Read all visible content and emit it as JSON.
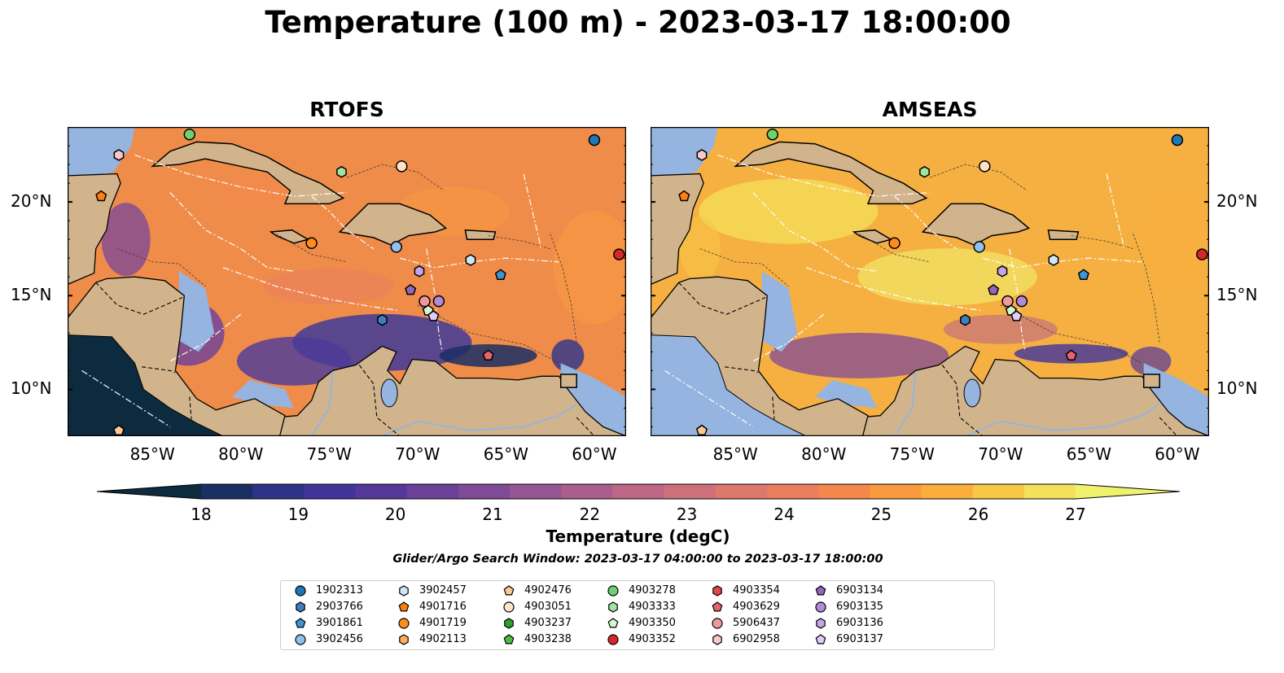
{
  "title": "Temperature (100 m) - 2023-03-17 18:00:00",
  "panels": [
    {
      "name": "rtofs",
      "title": "RTOFS"
    },
    {
      "name": "amseas",
      "title": "AMSEAS"
    }
  ],
  "axes": {
    "x_ticks": [
      "85°W",
      "80°W",
      "75°W",
      "70°W",
      "65°W",
      "60°W"
    ],
    "y_ticks": [
      "20°N",
      "15°N",
      "10°N"
    ]
  },
  "colorbar": {
    "label": "Temperature (degC)",
    "ticks": [
      "18",
      "19",
      "20",
      "21",
      "22",
      "23",
      "24",
      "25",
      "26",
      "27"
    ],
    "range": [
      18,
      27
    ],
    "colors": [
      "#0d2b3e",
      "#1a2f63",
      "#2c3389",
      "#40349a",
      "#55389a",
      "#6b4099",
      "#7f4a96",
      "#955592",
      "#a95e8d",
      "#bc6785",
      "#ce7079",
      "#dd786c",
      "#ea7e5e",
      "#f4884b",
      "#f99a3f",
      "#fbae3c",
      "#f8c744",
      "#f4e05a",
      "#f0f26e"
    ]
  },
  "search_window": "Glider/Argo Search Window: 2023-03-17 04:00:00 to 2023-03-17 18:00:00",
  "legend": [
    {
      "id": "1902313",
      "marker": "circle",
      "color": "#1f77b4"
    },
    {
      "id": "2903766",
      "marker": "hexagon",
      "color": "#3f7fbf"
    },
    {
      "id": "3901861",
      "marker": "pentagon",
      "color": "#3f95cf"
    },
    {
      "id": "3902456",
      "marker": "circle",
      "color": "#8fc1ec"
    },
    {
      "id": "3902457",
      "marker": "hexagon",
      "color": "#cfe6f7"
    },
    {
      "id": "4901716",
      "marker": "pentagon",
      "color": "#ff7f0e"
    },
    {
      "id": "4901719",
      "marker": "circle",
      "color": "#ff8c1a"
    },
    {
      "id": "4902113",
      "marker": "hexagon",
      "color": "#ffad5c"
    },
    {
      "id": "4902476",
      "marker": "pentagon",
      "color": "#ffc894"
    },
    {
      "id": "4903051",
      "marker": "circle",
      "color": "#ffe3c8"
    },
    {
      "id": "4903237",
      "marker": "hexagon",
      "color": "#2ca02c"
    },
    {
      "id": "4903238",
      "marker": "pentagon",
      "color": "#4cbf3c"
    },
    {
      "id": "4903278",
      "marker": "circle",
      "color": "#6fd06f"
    },
    {
      "id": "4903333",
      "marker": "hexagon",
      "color": "#a0e4a0"
    },
    {
      "id": "4903350",
      "marker": "pentagon",
      "color": "#d2f5d2"
    },
    {
      "id": "4903352",
      "marker": "circle",
      "color": "#d62728"
    },
    {
      "id": "4903354",
      "marker": "hexagon",
      "color": "#e0474a"
    },
    {
      "id": "4903629",
      "marker": "pentagon",
      "color": "#e8646a"
    },
    {
      "id": "5906437",
      "marker": "circle",
      "color": "#f0999b"
    },
    {
      "id": "6902958",
      "marker": "hexagon",
      "color": "#f8c8ca"
    },
    {
      "id": "6903134",
      "marker": "pentagon",
      "color": "#9467bd"
    },
    {
      "id": "6903135",
      "marker": "circle",
      "color": "#b08ad6"
    },
    {
      "id": "6903136",
      "marker": "hexagon",
      "color": "#c5a5ea"
    },
    {
      "id": "6903137",
      "marker": "pentagon",
      "color": "#e2cdf7"
    }
  ],
  "chart_data": {
    "type": "heatmap",
    "title": "Temperature (100 m) - 2023-03-17 18:00:00",
    "xlim": [
      -89.8,
      -58.2
    ],
    "ylim": [
      7.5,
      24.0
    ],
    "units": "degC",
    "colorbar_range": [
      18,
      27
    ],
    "legend_placement": "bottom-center",
    "subplots": [
      "RTOFS",
      "AMSEAS"
    ],
    "markers": [
      {
        "id": "1902313",
        "lon": -60.0,
        "lat": 23.3
      },
      {
        "id": "2903766",
        "lon": -72.0,
        "lat": 13.7
      },
      {
        "id": "3901861",
        "lon": -65.3,
        "lat": 16.1
      },
      {
        "id": "3902456",
        "lon": -71.2,
        "lat": 17.6
      },
      {
        "id": "3902457",
        "lon": -67.0,
        "lat": 16.9
      },
      {
        "id": "4901716",
        "lon": -87.9,
        "lat": 20.3
      },
      {
        "id": "4901719",
        "lon": -76.0,
        "lat": 17.8
      },
      {
        "id": "4902113",
        "lon": -70.9,
        "lat": 21.9
      },
      {
        "id": "4902476",
        "lon": -86.9,
        "lat": 7.8
      },
      {
        "id": "4903051",
        "lon": -70.9,
        "lat": 21.9
      },
      {
        "id": "4903278",
        "lon": -82.9,
        "lat": 23.6
      },
      {
        "id": "4903333",
        "lon": -74.3,
        "lat": 21.6
      },
      {
        "id": "4903350",
        "lon": -69.4,
        "lat": 14.2
      },
      {
        "id": "4903352",
        "lon": -58.6,
        "lat": 17.2
      },
      {
        "id": "4903629",
        "lon": -66.0,
        "lat": 11.8
      },
      {
        "id": "5906437",
        "lon": -69.6,
        "lat": 14.7
      },
      {
        "id": "6902958",
        "lon": -86.9,
        "lat": 22.5
      },
      {
        "id": "6903134",
        "lon": -70.4,
        "lat": 15.3
      },
      {
        "id": "6903135",
        "lon": -68.8,
        "lat": 14.7
      },
      {
        "id": "6903136",
        "lon": -69.9,
        "lat": 16.3
      },
      {
        "id": "6903137",
        "lon": -69.1,
        "lat": 13.9
      }
    ]
  }
}
